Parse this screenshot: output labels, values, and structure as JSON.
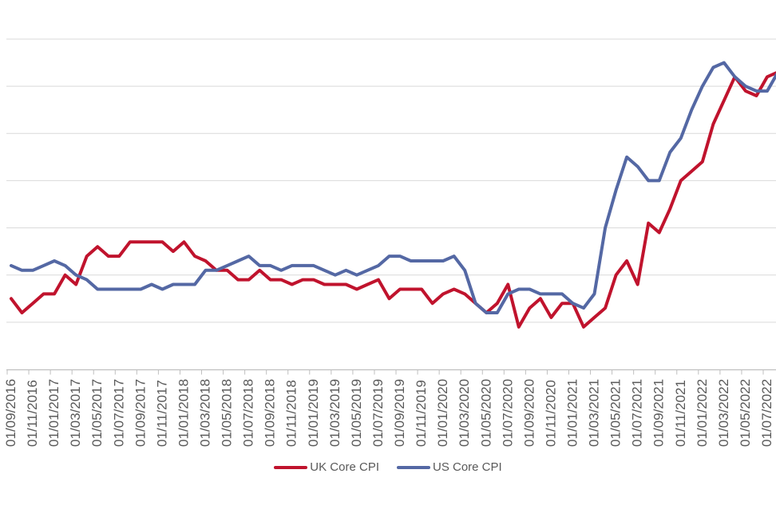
{
  "chart_data": {
    "type": "line",
    "title": "",
    "grid": true,
    "legend_position": "bottom-center",
    "y_axis": {
      "min": 0,
      "max": 7,
      "gridline_interval": 1,
      "tick_labels_visible": false
    },
    "x_axis": {
      "tick_labels": [
        "01/09/2016",
        "01/11/2016",
        "01/01/2017",
        "01/03/2017",
        "01/05/2017",
        "01/07/2017",
        "01/09/2017",
        "01/11/2017",
        "01/01/2018",
        "01/03/2018",
        "01/05/2018",
        "01/07/2018",
        "01/09/2018",
        "01/11/2018",
        "01/01/2019",
        "01/03/2019",
        "01/05/2019",
        "01/07/2019",
        "01/09/2019",
        "01/11/2019",
        "01/01/2020",
        "01/03/2020",
        "01/05/2020",
        "01/07/2020",
        "01/09/2020",
        "01/11/2020",
        "01/01/2021",
        "01/03/2021",
        "01/05/2021",
        "01/07/2021",
        "01/09/2021",
        "01/11/2021",
        "01/01/2022",
        "01/03/2022",
        "01/05/2022",
        "01/07/2022"
      ],
      "monthly_points": [
        "01/09/2016",
        "01/10/2016",
        "01/11/2016",
        "01/12/2016",
        "01/01/2017",
        "01/02/2017",
        "01/03/2017",
        "01/04/2017",
        "01/05/2017",
        "01/06/2017",
        "01/07/2017",
        "01/08/2017",
        "01/09/2017",
        "01/10/2017",
        "01/11/2017",
        "01/12/2017",
        "01/01/2018",
        "01/02/2018",
        "01/03/2018",
        "01/04/2018",
        "01/05/2018",
        "01/06/2018",
        "01/07/2018",
        "01/08/2018",
        "01/09/2018",
        "01/10/2018",
        "01/11/2018",
        "01/12/2018",
        "01/01/2019",
        "01/02/2019",
        "01/03/2019",
        "01/04/2019",
        "01/05/2019",
        "01/06/2019",
        "01/07/2019",
        "01/08/2019",
        "01/09/2019",
        "01/10/2019",
        "01/11/2019",
        "01/12/2019",
        "01/01/2020",
        "01/02/2020",
        "01/03/2020",
        "01/04/2020",
        "01/05/2020",
        "01/06/2020",
        "01/07/2020",
        "01/08/2020",
        "01/09/2020",
        "01/10/2020",
        "01/11/2020",
        "01/12/2020",
        "01/01/2021",
        "01/02/2021",
        "01/03/2021",
        "01/04/2021",
        "01/05/2021",
        "01/06/2021",
        "01/07/2021",
        "01/08/2021",
        "01/09/2021",
        "01/10/2021",
        "01/11/2021",
        "01/12/2021",
        "01/01/2022",
        "01/02/2022",
        "01/03/2022",
        "01/04/2022",
        "01/05/2022",
        "01/06/2022",
        "01/07/2022",
        "01/08/2022"
      ]
    },
    "series": [
      {
        "name": "UK Core CPI",
        "color": "#C0132D",
        "values": [
          1.5,
          1.2,
          1.4,
          1.6,
          1.6,
          2.0,
          1.8,
          2.4,
          2.6,
          2.4,
          2.4,
          2.7,
          2.7,
          2.7,
          2.7,
          2.5,
          2.7,
          2.4,
          2.3,
          2.1,
          2.1,
          1.9,
          1.9,
          2.1,
          1.9,
          1.9,
          1.8,
          1.9,
          1.9,
          1.8,
          1.8,
          1.8,
          1.7,
          1.8,
          1.9,
          1.5,
          1.7,
          1.7,
          1.7,
          1.4,
          1.6,
          1.7,
          1.6,
          1.4,
          1.2,
          1.4,
          1.8,
          0.9,
          1.3,
          1.5,
          1.1,
          1.4,
          1.4,
          0.9,
          1.1,
          1.3,
          2.0,
          2.3,
          1.8,
          3.1,
          2.9,
          3.4,
          4.0,
          4.2,
          4.4,
          5.2,
          5.7,
          6.2,
          5.9,
          5.8,
          6.2,
          6.3
        ]
      },
      {
        "name": "US Core CPI",
        "color": "#5468A4",
        "values": [
          2.2,
          2.1,
          2.1,
          2.2,
          2.3,
          2.2,
          2.0,
          1.9,
          1.7,
          1.7,
          1.7,
          1.7,
          1.7,
          1.8,
          1.7,
          1.8,
          1.8,
          1.8,
          2.1,
          2.1,
          2.2,
          2.3,
          2.4,
          2.2,
          2.2,
          2.1,
          2.2,
          2.2,
          2.2,
          2.1,
          2.0,
          2.1,
          2.0,
          2.1,
          2.2,
          2.4,
          2.4,
          2.3,
          2.3,
          2.3,
          2.3,
          2.4,
          2.1,
          1.4,
          1.2,
          1.2,
          1.6,
          1.7,
          1.7,
          1.6,
          1.6,
          1.6,
          1.4,
          1.3,
          1.6,
          3.0,
          3.8,
          4.5,
          4.3,
          4.0,
          4.0,
          4.6,
          4.9,
          5.5,
          6.0,
          6.4,
          6.5,
          6.2,
          6.0,
          5.9,
          5.9,
          6.3
        ]
      }
    ]
  },
  "colors": {
    "gridline": "#D9D9D9",
    "axis_line": "#BFBFBF",
    "tick_mark": "#BFBFBF",
    "axis_label_text": "#595959",
    "legend_text": "#595959",
    "background": "#FFFFFF"
  }
}
